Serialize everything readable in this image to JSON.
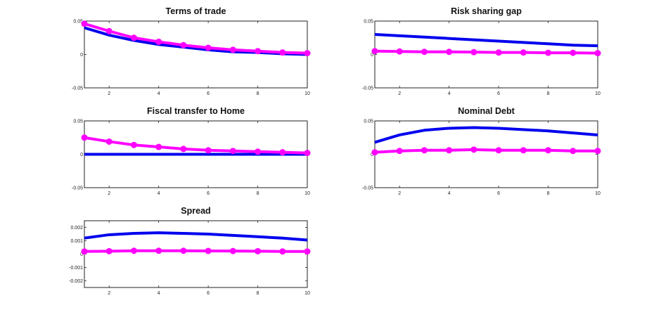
{
  "chart_data": [
    {
      "type": "line",
      "title": "Terms of trade",
      "x": [
        1,
        2,
        3,
        4,
        5,
        6,
        7,
        8,
        9,
        10
      ],
      "xlim": [
        1,
        10
      ],
      "ylim": [
        -0.05,
        0.05
      ],
      "xticks": [
        2,
        4,
        6,
        8,
        10
      ],
      "yticks": [
        -0.05,
        0,
        0.05
      ],
      "ytick_labels": [
        "-0.05",
        "0",
        "0.05"
      ],
      "grid": false,
      "series": [
        {
          "color": "#0000ee",
          "marker": "none",
          "values": [
            0.04,
            0.029,
            0.021,
            0.015,
            0.011,
            0.007,
            0.004,
            0.003,
            0.001,
            0.0
          ]
        },
        {
          "color": "#ff00ff",
          "marker": "circle",
          "values": [
            0.046,
            0.035,
            0.025,
            0.019,
            0.014,
            0.01,
            0.007,
            0.005,
            0.003,
            0.002
          ]
        }
      ]
    },
    {
      "type": "line",
      "title": "Risk sharing gap",
      "x": [
        1,
        2,
        3,
        4,
        5,
        6,
        7,
        8,
        9,
        10
      ],
      "xlim": [
        1,
        10
      ],
      "ylim": [
        -0.05,
        0.05
      ],
      "xticks": [
        2,
        4,
        6,
        8,
        10
      ],
      "yticks": [
        -0.05,
        0,
        0.05
      ],
      "ytick_labels": [
        "-0.05",
        "0",
        "0.05"
      ],
      "grid": false,
      "series": [
        {
          "color": "#0000ee",
          "marker": "none",
          "values": [
            0.03,
            0.028,
            0.026,
            0.024,
            0.022,
            0.02,
            0.018,
            0.016,
            0.014,
            0.013
          ]
        },
        {
          "color": "#ff00ff",
          "marker": "circle",
          "values": [
            0.005,
            0.0045,
            0.004,
            0.004,
            0.0035,
            0.003,
            0.003,
            0.0025,
            0.0025,
            0.002
          ]
        }
      ]
    },
    {
      "type": "line",
      "title": "Fiscal transfer to Home",
      "x": [
        1,
        2,
        3,
        4,
        5,
        6,
        7,
        8,
        9,
        10
      ],
      "xlim": [
        1,
        10
      ],
      "ylim": [
        -0.05,
        0.05
      ],
      "xticks": [
        2,
        4,
        6,
        8,
        10
      ],
      "yticks": [
        -0.05,
        0,
        0.05
      ],
      "ytick_labels": [
        "-0.05",
        "0",
        "0.05"
      ],
      "grid": false,
      "series": [
        {
          "color": "#0000ee",
          "marker": "none",
          "values": [
            0,
            0,
            0,
            0,
            0,
            0,
            0,
            0,
            0,
            0
          ]
        },
        {
          "color": "#ff00ff",
          "marker": "circle",
          "values": [
            0.025,
            0.019,
            0.014,
            0.011,
            0.008,
            0.006,
            0.005,
            0.004,
            0.003,
            0.002
          ]
        }
      ]
    },
    {
      "type": "line",
      "title": "Nominal Debt",
      "x": [
        1,
        2,
        3,
        4,
        5,
        6,
        7,
        8,
        9,
        10
      ],
      "xlim": [
        1,
        10
      ],
      "ylim": [
        -0.05,
        0.05
      ],
      "xticks": [
        2,
        4,
        6,
        8,
        10
      ],
      "yticks": [
        -0.05,
        0,
        0.05
      ],
      "ytick_labels": [
        "-0.05",
        "0",
        "0.05"
      ],
      "grid": false,
      "series": [
        {
          "color": "#0000ee",
          "marker": "none",
          "values": [
            0.018,
            0.029,
            0.036,
            0.039,
            0.04,
            0.039,
            0.037,
            0.035,
            0.032,
            0.029
          ]
        },
        {
          "color": "#ff00ff",
          "marker": "circle",
          "values": [
            0.003,
            0.005,
            0.006,
            0.006,
            0.007,
            0.006,
            0.006,
            0.006,
            0.005,
            0.005
          ]
        }
      ]
    },
    {
      "type": "line",
      "title": "Spread",
      "x": [
        1,
        2,
        3,
        4,
        5,
        6,
        7,
        8,
        9,
        10
      ],
      "xlim": [
        1,
        10
      ],
      "ylim": [
        -0.0025,
        0.0025
      ],
      "xticks": [
        2,
        4,
        6,
        8,
        10
      ],
      "yticks": [
        -0.002,
        -0.001,
        0,
        0.001,
        0.002
      ],
      "ytick_labels": [
        "-0.002",
        "-0.001",
        "0",
        "0.001",
        "0.002"
      ],
      "grid": false,
      "series": [
        {
          "color": "#0000ee",
          "marker": "none",
          "values": [
            0.0012,
            0.00145,
            0.00155,
            0.0016,
            0.00155,
            0.0015,
            0.0014,
            0.0013,
            0.0012,
            0.00105
          ]
        },
        {
          "color": "#ff00ff",
          "marker": "circle",
          "values": [
            0.0002,
            0.00022,
            0.00025,
            0.00025,
            0.00025,
            0.00024,
            0.00023,
            0.00022,
            0.0002,
            0.0002
          ]
        }
      ]
    }
  ]
}
